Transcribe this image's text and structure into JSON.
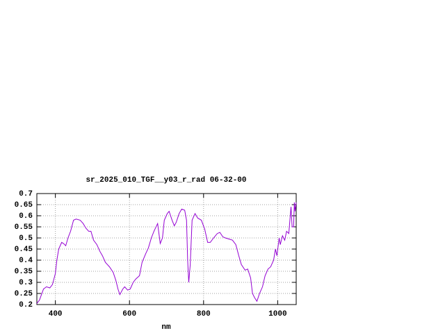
{
  "chart_data": {
    "type": "line",
    "title": "sr_2025_010_TGF__y03_r_rad 06-32-00",
    "x_label": "nm",
    "xlim": [
      350,
      1050
    ],
    "xticks": [
      400,
      600,
      800,
      1000
    ],
    "ylim": [
      0.2,
      0.7
    ],
    "yticks": [
      0.2,
      0.25,
      0.3,
      0.35,
      0.4,
      0.45,
      0.5,
      0.55,
      0.6,
      0.65,
      0.7
    ],
    "grid": true,
    "x": [
      350,
      357,
      368,
      376,
      385,
      392,
      400,
      404,
      409,
      417,
      422,
      428,
      434,
      441,
      449,
      456,
      467,
      475,
      482,
      490,
      496,
      503,
      512,
      520,
      527,
      535,
      546,
      556,
      563,
      569,
      574,
      582,
      587,
      595,
      602,
      610,
      617,
      627,
      634,
      644,
      651,
      659,
      666,
      676,
      683,
      689,
      694,
      702,
      707,
      715,
      721,
      726,
      734,
      741,
      749,
      754,
      757,
      760,
      764,
      769,
      777,
      784,
      794,
      803,
      811,
      818,
      827,
      837,
      844,
      852,
      859,
      869,
      878,
      887,
      895,
      902,
      912,
      919,
      927,
      932,
      938,
      944,
      951,
      959,
      966,
      974,
      981,
      989,
      994,
      998,
      1004,
      1007,
      1013,
      1019,
      1024,
      1030,
      1036,
      1039,
      1043,
      1045,
      1047,
      1050
    ],
    "series": [
      {
        "color": "#9400d3",
        "values": [
          0.205,
          0.22,
          0.27,
          0.28,
          0.275,
          0.29,
          0.34,
          0.4,
          0.45,
          0.48,
          0.475,
          0.465,
          0.5,
          0.53,
          0.58,
          0.585,
          0.58,
          0.565,
          0.545,
          0.53,
          0.53,
          0.49,
          0.47,
          0.44,
          0.42,
          0.39,
          0.37,
          0.345,
          0.31,
          0.27,
          0.245,
          0.27,
          0.28,
          0.265,
          0.27,
          0.3,
          0.315,
          0.33,
          0.39,
          0.43,
          0.455,
          0.5,
          0.53,
          0.565,
          0.475,
          0.5,
          0.58,
          0.61,
          0.62,
          0.58,
          0.555,
          0.57,
          0.61,
          0.63,
          0.625,
          0.58,
          0.4,
          0.3,
          0.38,
          0.58,
          0.61,
          0.59,
          0.58,
          0.54,
          0.48,
          0.48,
          0.5,
          0.52,
          0.525,
          0.505,
          0.5,
          0.495,
          0.49,
          0.47,
          0.42,
          0.38,
          0.355,
          0.36,
          0.32,
          0.25,
          0.23,
          0.215,
          0.25,
          0.28,
          0.33,
          0.36,
          0.37,
          0.4,
          0.45,
          0.42,
          0.5,
          0.47,
          0.51,
          0.49,
          0.53,
          0.52,
          0.64,
          0.55,
          0.55,
          0.66,
          0.62,
          0.66
        ]
      }
    ]
  }
}
